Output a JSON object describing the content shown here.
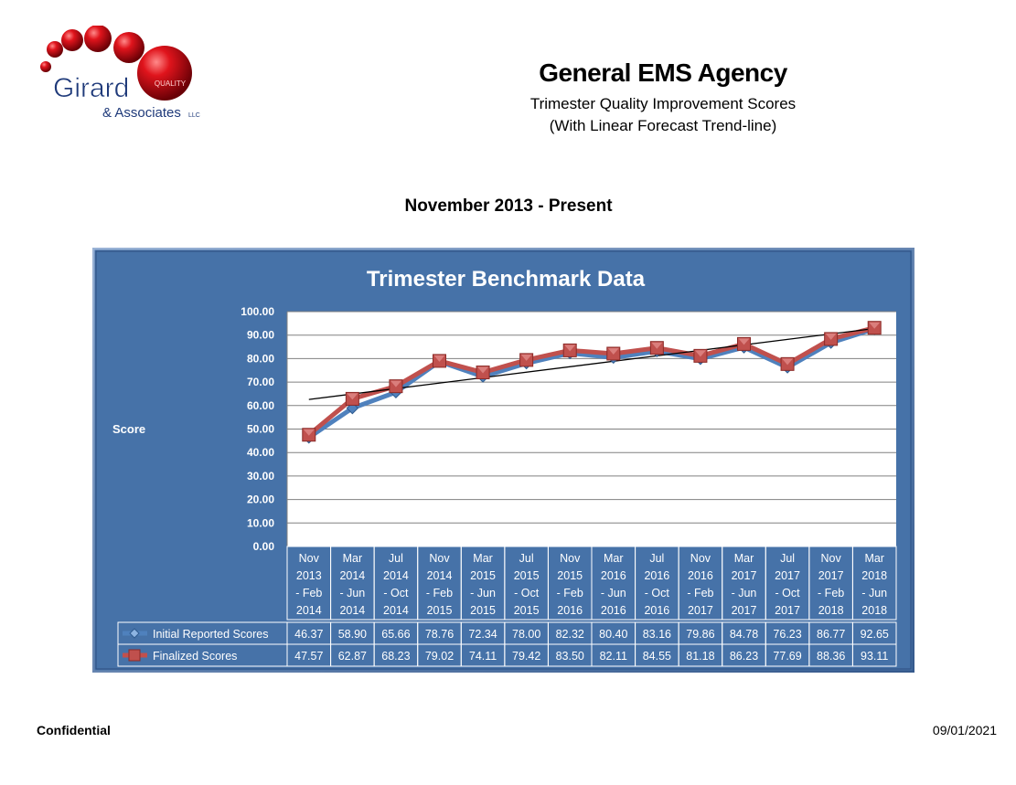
{
  "header": {
    "logo_name": "Girard",
    "logo_associates": "& Associates",
    "logo_llc": "LLC",
    "logo_quality": "QUALITY",
    "title": "General EMS Agency",
    "subtitle_line1": "Trimester Quality Improvement Scores",
    "subtitle_line2": "(With Linear Forecast Trend-line)",
    "period": "November 2013 - Present"
  },
  "footer": {
    "confidential": "Confidential",
    "date": "09/01/2021"
  },
  "chart_data": {
    "type": "line",
    "title": "Trimester Benchmark Data",
    "ylabel": "Score",
    "xlabel": "",
    "ylim": [
      0,
      100
    ],
    "yticks": [
      "100.00",
      "90.00",
      "80.00",
      "70.00",
      "60.00",
      "50.00",
      "40.00",
      "30.00",
      "20.00",
      "10.00",
      "0.00"
    ],
    "categories": [
      [
        "Nov",
        "2013",
        "- Feb",
        "2014"
      ],
      [
        "Mar",
        "2014",
        "- Jun",
        "2014"
      ],
      [
        "Jul",
        "2014",
        "- Oct",
        "2014"
      ],
      [
        "Nov",
        "2014",
        "- Feb",
        "2015"
      ],
      [
        "Mar",
        "2015",
        "- Jun",
        "2015"
      ],
      [
        "Jul",
        "2015",
        "- Oct",
        "2015"
      ],
      [
        "Nov",
        "2015",
        "- Feb",
        "2016"
      ],
      [
        "Mar",
        "2016",
        "- Jun",
        "2016"
      ],
      [
        "Jul",
        "2016",
        "- Oct",
        "2016"
      ],
      [
        "Nov",
        "2016",
        "- Feb",
        "2017"
      ],
      [
        "Mar",
        "2017",
        "- Jun",
        "2017"
      ],
      [
        "Jul",
        "2017",
        "- Oct",
        "2017"
      ],
      [
        "Nov",
        "2017",
        "- Feb",
        "2018"
      ],
      [
        "Mar",
        "2018",
        "- Jun",
        "2018"
      ]
    ],
    "series": [
      {
        "name": "Initial Reported Scores",
        "color": "#4f81bd",
        "marker": "diamond",
        "values": [
          46.37,
          58.9,
          65.66,
          78.76,
          72.34,
          78.0,
          82.32,
          80.4,
          83.16,
          79.86,
          84.78,
          76.23,
          86.77,
          92.65
        ],
        "labels": [
          "46.37",
          "58.90",
          "65.66",
          "78.76",
          "72.34",
          "78.00",
          "82.32",
          "80.40",
          "83.16",
          "79.86",
          "84.78",
          "76.23",
          "86.77",
          "92.65"
        ]
      },
      {
        "name": "Finalized Scores",
        "color": "#c0504d",
        "marker": "square",
        "values": [
          47.57,
          62.87,
          68.23,
          79.02,
          74.11,
          79.42,
          83.5,
          82.11,
          84.55,
          81.18,
          86.23,
          77.69,
          88.36,
          93.11
        ],
        "labels": [
          "47.57",
          "62.87",
          "68.23",
          "79.02",
          "74.11",
          "79.42",
          "83.50",
          "82.11",
          "84.55",
          "81.18",
          "86.23",
          "77.69",
          "88.36",
          "93.11"
        ]
      }
    ],
    "trendline": {
      "type": "linear",
      "color": "#000000"
    },
    "grid": true,
    "legend": "data-table",
    "background": "#4672a8",
    "plot_background": "#ffffff"
  }
}
